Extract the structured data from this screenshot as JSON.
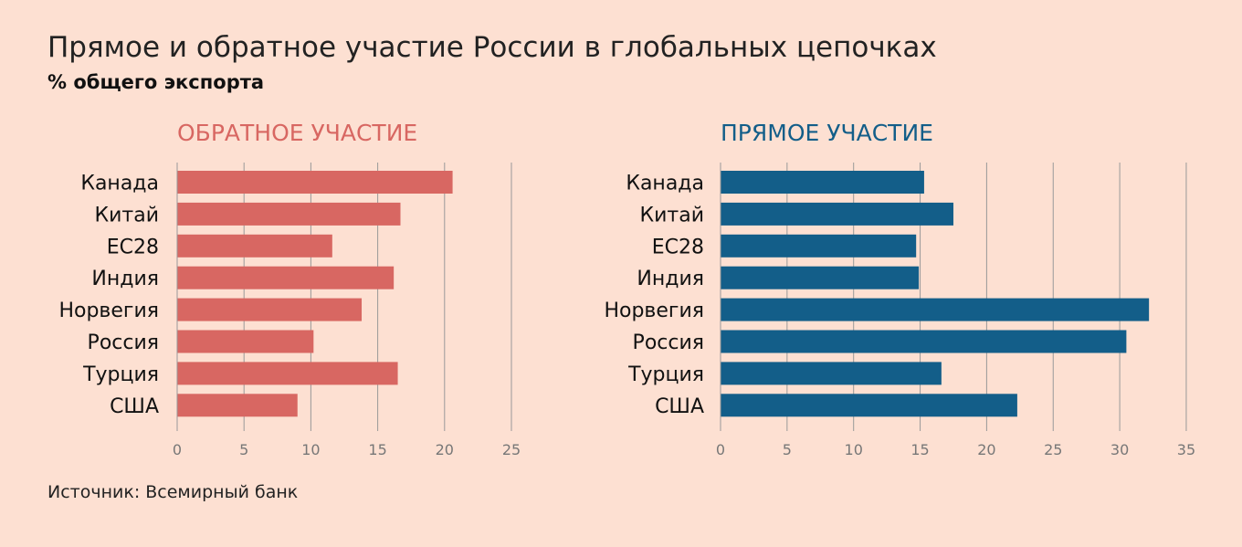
{
  "title": "Прямое и обратное участие России в глобальных цепочках",
  "subtitle": "% общего экспорта",
  "source": "Источник: Всемирный банк",
  "colors": {
    "background": "#fde0d2",
    "backward": "#d86762",
    "forward": "#135e89"
  },
  "chart_data": [
    {
      "type": "bar",
      "orientation": "horizontal",
      "title": "ОБРАТНОЕ УЧАСТИЕ",
      "color": "#d86762",
      "categories": [
        "Канада",
        "Китай",
        "ЕС28",
        "Индия",
        "Норвегия",
        "Россия",
        "Турция",
        "США"
      ],
      "values": [
        20.6,
        16.7,
        11.6,
        16.2,
        13.8,
        10.2,
        16.5,
        9.0
      ],
      "xlim": [
        0,
        25
      ],
      "ticks": [
        0,
        5,
        10,
        15,
        20,
        25
      ],
      "grid": true,
      "xlabel": "",
      "ylabel": ""
    },
    {
      "type": "bar",
      "orientation": "horizontal",
      "title": "ПРЯМОЕ УЧАСТИЕ",
      "color": "#135e89",
      "categories": [
        "Канада",
        "Китай",
        "ЕС28",
        "Индия",
        "Норвегия",
        "Россия",
        "Турция",
        "США"
      ],
      "values": [
        15.3,
        17.5,
        14.7,
        14.9,
        32.2,
        30.5,
        16.6,
        22.3
      ],
      "xlim": [
        0,
        35
      ],
      "ticks": [
        0,
        5,
        10,
        15,
        20,
        25,
        30,
        35
      ],
      "grid": true,
      "xlabel": "",
      "ylabel": ""
    }
  ]
}
